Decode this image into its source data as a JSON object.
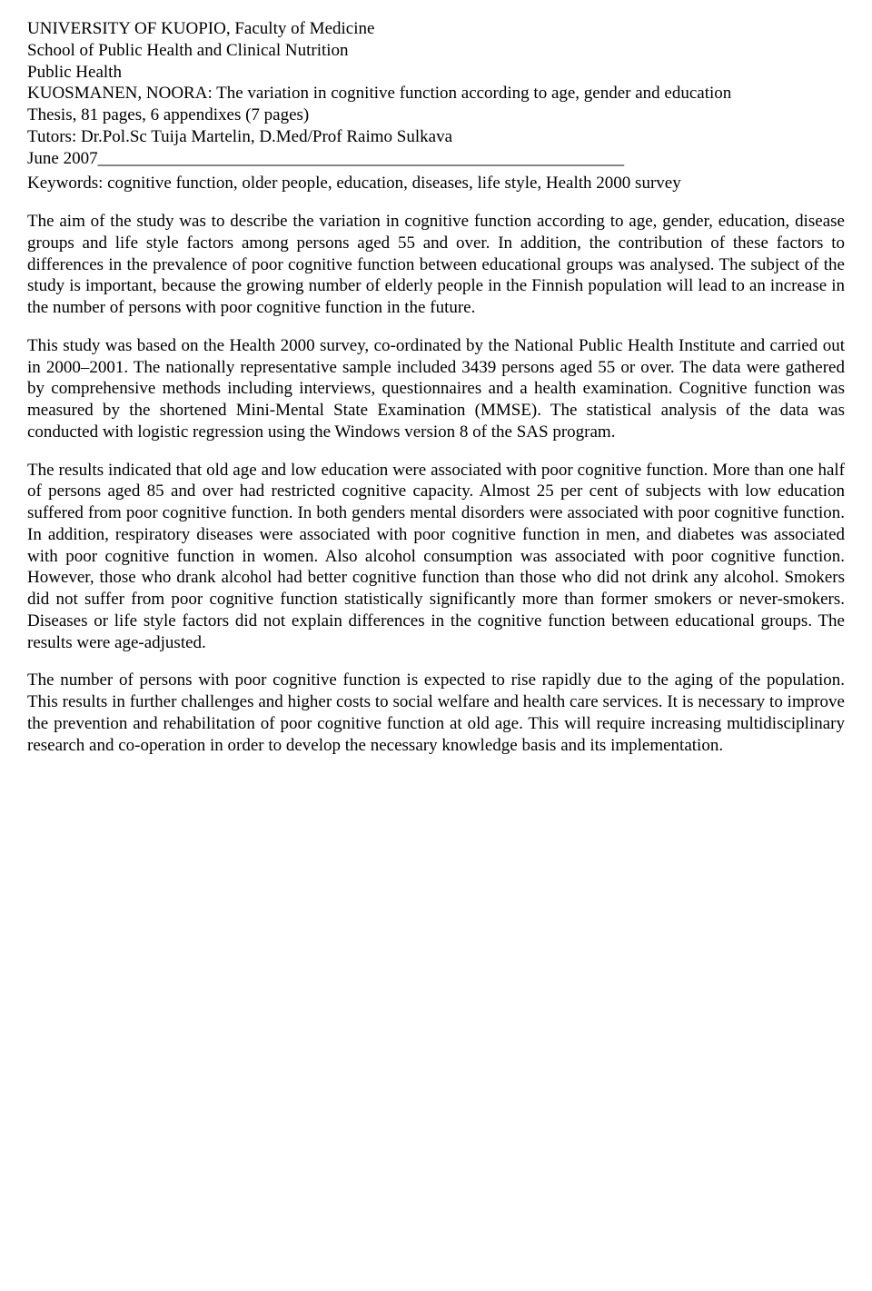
{
  "header": {
    "university": "UNIVERSITY OF KUOPIO, Faculty of Medicine",
    "school": "School of Public Health and Clinical Nutrition",
    "department": "Public Health",
    "author_title": "KUOSMANEN, NOORA: The variation in cognitive function according to age, gender and education",
    "thesis_info": "Thesis, 81 pages, 6 appendixes (7 pages)",
    "tutors": "Tutors: Dr.Pol.Sc Tuija Martelin, D.Med/Prof Raimo Sulkava",
    "date": "June 2007_____________________________________________________________",
    "keywords": "Keywords: cognitive function, older people, education, diseases, life style, Health 2000 survey"
  },
  "paragraphs": {
    "p1": "The aim of the study was to describe the variation in cognitive function according to age, gender, education, disease groups and life style factors among persons aged 55 and over. In addition, the contribution of these factors to differences in the prevalence of poor cognitive function between educational groups was analysed. The subject of the study is important, because the growing number of elderly people in the Finnish population will lead to an increase in the number of persons with poor cognitive function in the future.",
    "p2": "This study was based on the Health 2000 survey, co-ordinated by the National Public Health Institute and carried out in 2000–2001. The nationally representative sample included 3439 persons aged 55 or over. The data were gathered by comprehensive methods including interviews, questionnaires and a health examination. Cognitive function was measured by the shortened Mini-Mental State Examination (MMSE). The statistical analysis of the data was conducted with logistic regression using the Windows version 8 of the SAS program.",
    "p3": "The results indicated that old age and low education were associated with poor cognitive function. More than one half of persons aged 85 and over had restricted cognitive capacity. Almost 25 per cent of subjects with low education suffered from poor cognitive function. In both genders mental disorders were associated with poor cognitive function. In addition, respiratory diseases were associated with poor cognitive function in men, and diabetes was associated with poor cognitive function in women. Also alcohol consumption was associated with poor cognitive function. However, those who drank alcohol had better cognitive function than those who did not drink any alcohol. Smokers did not suffer from poor cognitive function statistically significantly more than former smokers or never-smokers. Diseases or life style factors did not explain differences in the cognitive function between educational groups. The results were age-adjusted.",
    "p4": "The number of persons with poor cognitive function is expected to rise rapidly due to the aging of the population. This results in further challenges and higher costs to social welfare and health care services. It is necessary to improve the prevention and rehabilitation of poor cognitive function at old age. This will require increasing multidisciplinary research and co-operation in order to develop the necessary knowledge basis and its implementation."
  }
}
